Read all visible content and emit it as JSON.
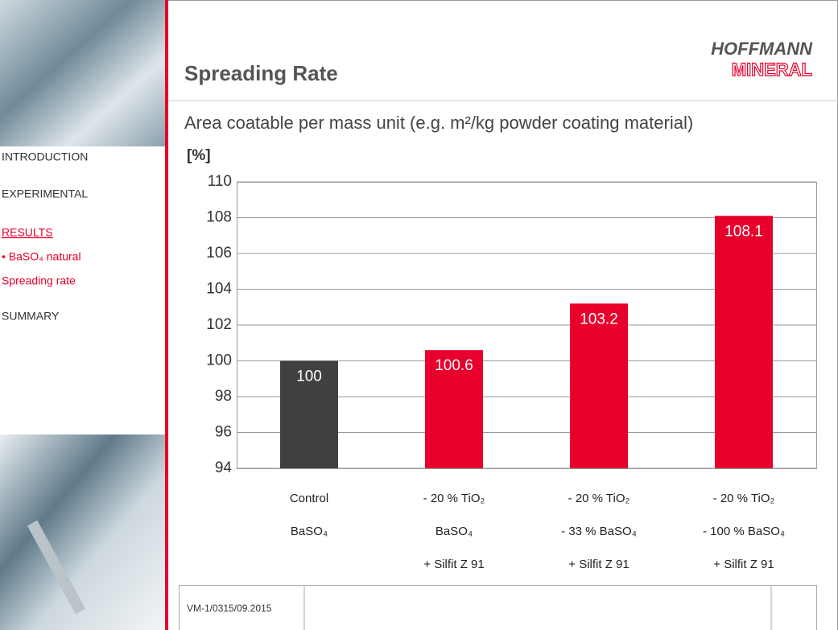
{
  "logo": {
    "top": "HOFFMANN",
    "bottom": "MINERAL"
  },
  "nav": [
    "INTRODUCTION",
    "EXPERIMENTAL",
    "RESULTS",
    "• BaSO₄ natural",
    "Spreading rate",
    "SUMMARY"
  ],
  "footer": "VM-1/0315/09.2015",
  "chart_data": {
    "type": "bar",
    "title": "Spreading Rate",
    "subtitle": "Area coatable per mass unit (e.g. m²/kg powder coating material)",
    "ylabel": "[%]",
    "categories": [
      [
        "Control",
        "BaSO₄"
      ],
      [
        "- 20 % TiO₂",
        "BaSO₄",
        "+ Silfit Z 91"
      ],
      [
        "- 20 % TiO₂",
        "- 33 % BaSO₄",
        "+ Silfit Z 91"
      ],
      [
        "- 20 % TiO₂",
        "- 100 % BaSO₄",
        "+ Silfit Z 91"
      ]
    ],
    "values": [
      100,
      100.6,
      103.2,
      108.1
    ],
    "colors": [
      "#404040",
      "#e8002d",
      "#e8002d",
      "#e8002d"
    ],
    "ylim": [
      94,
      110
    ],
    "yticks": [
      94,
      96,
      98,
      100,
      102,
      104,
      106,
      108,
      110
    ],
    "grid": true
  }
}
